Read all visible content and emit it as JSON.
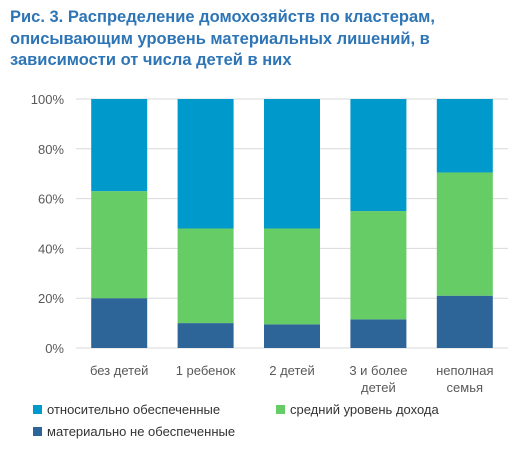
{
  "colors": {
    "title": "#2e75b6",
    "axis_text": "#595959",
    "gridline": "#d9d9d9"
  },
  "chart_data": {
    "type": "bar",
    "stacked": true,
    "percent": true,
    "title": "Рис. 3. Распределение домохозяйств по кластерам, описывающим уровень материальных лишений, в зависимости от числа детей в них",
    "categories": [
      [
        "без детей"
      ],
      [
        "1 ребенок"
      ],
      [
        "2 детей"
      ],
      [
        "3 и более",
        "детей"
      ],
      [
        "неполная",
        "семья"
      ]
    ],
    "ylim": [
      0,
      100
    ],
    "yticks": [
      "0%",
      "20%",
      "40%",
      "60%",
      "80%",
      "100%"
    ],
    "grid": true,
    "legend_position": "bottom",
    "series": [
      {
        "name": "материально не обеспеченные",
        "color": "#2e6599",
        "values": [
          20,
          10,
          9.5,
          11.5,
          21
        ]
      },
      {
        "name": "средний уровень дохода",
        "color": "#66cc66",
        "values": [
          43,
          38,
          38.5,
          43.5,
          49.5
        ]
      },
      {
        "name": "относительно обеспеченные",
        "color": "#0099cc",
        "values": [
          37,
          52,
          52,
          45,
          29.5
        ]
      }
    ]
  }
}
